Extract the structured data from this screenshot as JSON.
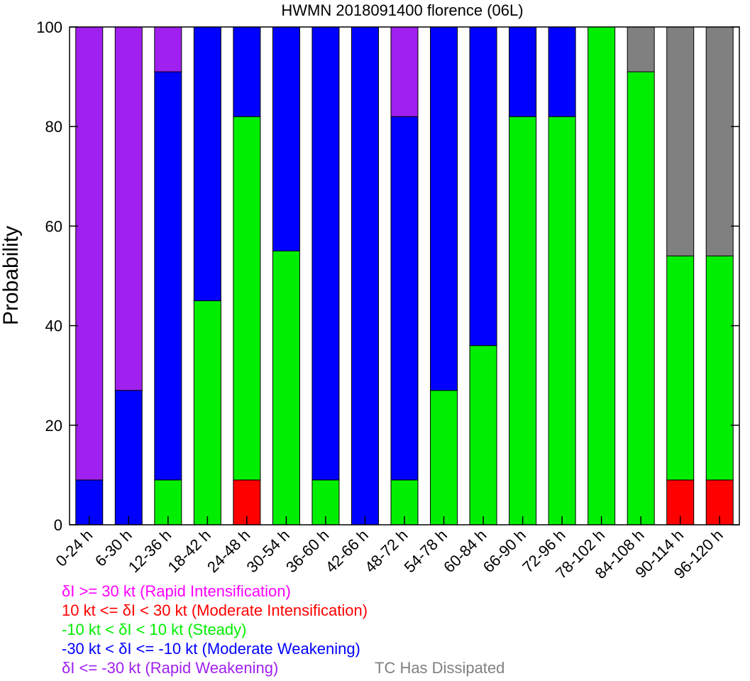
{
  "chart_data": {
    "type": "bar",
    "stacked": true,
    "title": "HWMN 2018091400 florence (06L)",
    "ylabel": "Probability",
    "xlabel": "",
    "ylim": [
      0,
      100
    ],
    "yticks": [
      "0",
      "20",
      "40",
      "60",
      "80",
      "100"
    ],
    "categories": [
      "0-24 h",
      "6-30 h",
      "12-36 h",
      "18-42 h",
      "24-48 h",
      "30-54 h",
      "36-60 h",
      "42-66 h",
      "48-72 h",
      "54-78 h",
      "60-84 h",
      "66-90 h",
      "72-96 h",
      "78-102 h",
      "84-108 h",
      "90-114 h",
      "96-120 h"
    ],
    "series": [
      {
        "key": "ri",
        "color": "#ff00ff",
        "values": [
          0,
          0,
          0,
          0,
          0,
          0,
          0,
          0,
          0,
          0,
          0,
          0,
          0,
          0,
          0,
          0,
          0
        ]
      },
      {
        "key": "mi",
        "color": "#ff0000",
        "values": [
          0,
          0,
          0,
          0,
          9,
          0,
          0,
          0,
          0,
          0,
          0,
          0,
          0,
          0,
          0,
          9,
          9
        ]
      },
      {
        "key": "st",
        "color": "#00ee00",
        "values": [
          0,
          0,
          9,
          45,
          73,
          55,
          9,
          0,
          9,
          27,
          36,
          82,
          82,
          100,
          91,
          45,
          45
        ]
      },
      {
        "key": "mw",
        "color": "#0000ff",
        "values": [
          9,
          27,
          82,
          55,
          18,
          45,
          91,
          100,
          73,
          73,
          64,
          18,
          18,
          0,
          0,
          0,
          0
        ]
      },
      {
        "key": "rw",
        "color": "#a020f0",
        "values": [
          91,
          73,
          9,
          0,
          0,
          0,
          0,
          0,
          18,
          0,
          0,
          0,
          0,
          0,
          0,
          0,
          0
        ]
      },
      {
        "key": "dis",
        "color": "#808080",
        "values": [
          0,
          0,
          0,
          0,
          0,
          0,
          0,
          0,
          0,
          0,
          0,
          0,
          0,
          0,
          9,
          46,
          46
        ]
      }
    ],
    "legend": {
      "ri": {
        "text": "δI >= 30 kt (Rapid Intensification)",
        "color": "#ff00ff"
      },
      "mi": {
        "text": "10 kt <= δI < 30 kt (Moderate Intensification)",
        "color": "#ff0000"
      },
      "st": {
        "text": "-10 kt < δI < 10 kt (Steady)",
        "color": "#00ee00"
      },
      "mw": {
        "text": "-30 kt < δI <= -10 kt (Moderate Weakening)",
        "color": "#0000ff"
      },
      "rw": {
        "text": "δI <= -30 kt (Rapid Weakening)",
        "color": "#a020f0"
      },
      "dis": {
        "text": "TC Has Dissipated",
        "color": "#808080"
      }
    },
    "legend_placement": "bottom"
  }
}
